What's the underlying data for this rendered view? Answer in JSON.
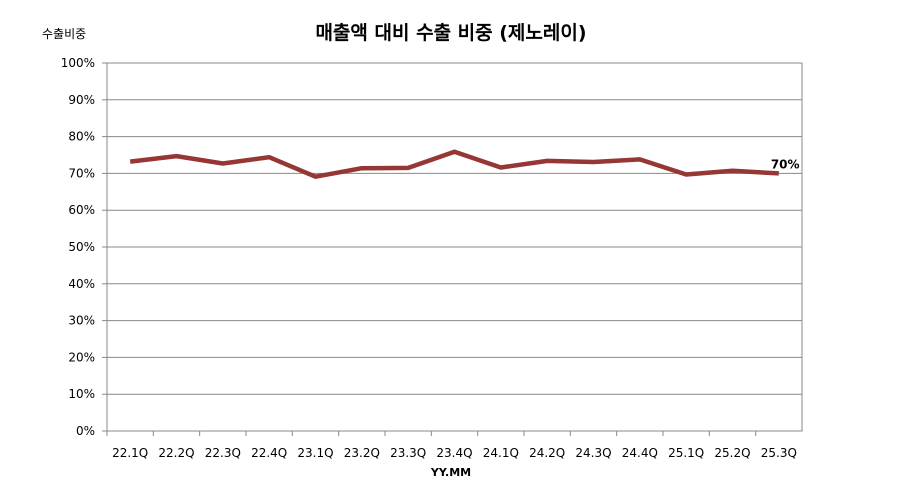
{
  "chart_data": {
    "type": "line",
    "title": "매출액 대비 수출 비중 (제노레이)",
    "ylabel": "수출비중",
    "xlabel": "YY.MM",
    "categories": [
      "22.1Q",
      "22.2Q",
      "22.3Q",
      "22.4Q",
      "23.1Q",
      "23.2Q",
      "23.3Q",
      "23.4Q",
      "24.1Q",
      "24.2Q",
      "24.3Q",
      "24.4Q",
      "25.1Q",
      "25.2Q",
      "25.3Q"
    ],
    "series": [
      {
        "name": "수출비중",
        "values": [
          73.2,
          74.7,
          72.7,
          74.4,
          69.1,
          71.4,
          71.5,
          75.9,
          71.6,
          73.4,
          73.1,
          73.8,
          69.7,
          70.7,
          70.0
        ],
        "color": "#953735"
      }
    ],
    "ylim": [
      0,
      100
    ],
    "yticks": [
      0,
      10,
      20,
      30,
      40,
      50,
      60,
      70,
      80,
      90,
      100
    ],
    "ytick_labels": [
      "0%",
      "10%",
      "20%",
      "30%",
      "40%",
      "50%",
      "60%",
      "70%",
      "80%",
      "90%",
      "100%"
    ],
    "grid": true,
    "legend": "none",
    "annotation": "70%"
  }
}
